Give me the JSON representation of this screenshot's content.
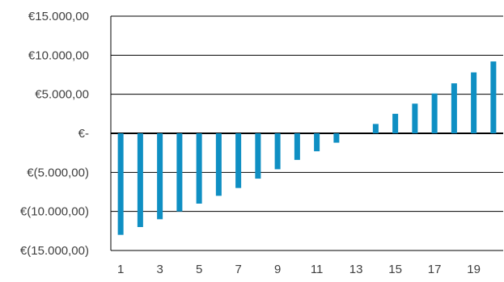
{
  "chart_data": {
    "type": "bar",
    "title": "",
    "xlabel": "",
    "ylabel": "",
    "categories": [
      1,
      2,
      3,
      4,
      5,
      6,
      7,
      8,
      9,
      10,
      11,
      12,
      13,
      14,
      15,
      16,
      17,
      18,
      19,
      20
    ],
    "x_tick_labels": [
      "1",
      "3",
      "5",
      "7",
      "9",
      "11",
      "13",
      "15",
      "17",
      "19"
    ],
    "values": [
      -13000,
      -12000,
      -11000,
      -10000,
      -9000,
      -8000,
      -7000,
      -5800,
      -4600,
      -3400,
      -2300,
      -1200,
      0,
      1200,
      2500,
      3800,
      5100,
      6400,
      7800,
      9200
    ],
    "ylim": [
      -15000,
      15000
    ],
    "y_ticks": [
      15000,
      10000,
      5000,
      0,
      -5000,
      -10000,
      -15000
    ],
    "y_tick_labels": [
      "€15.000,00",
      "€10.000,00",
      "€5.000,00",
      "€-",
      "€(5.000,00)",
      "€(10.000,00)",
      "€(15.000,00)"
    ],
    "grid": "horizontal",
    "legend": "none",
    "colors": {
      "bar": "#0f8fc3",
      "grid": "#000000",
      "axis": "#000000",
      "text": "#404040"
    }
  }
}
